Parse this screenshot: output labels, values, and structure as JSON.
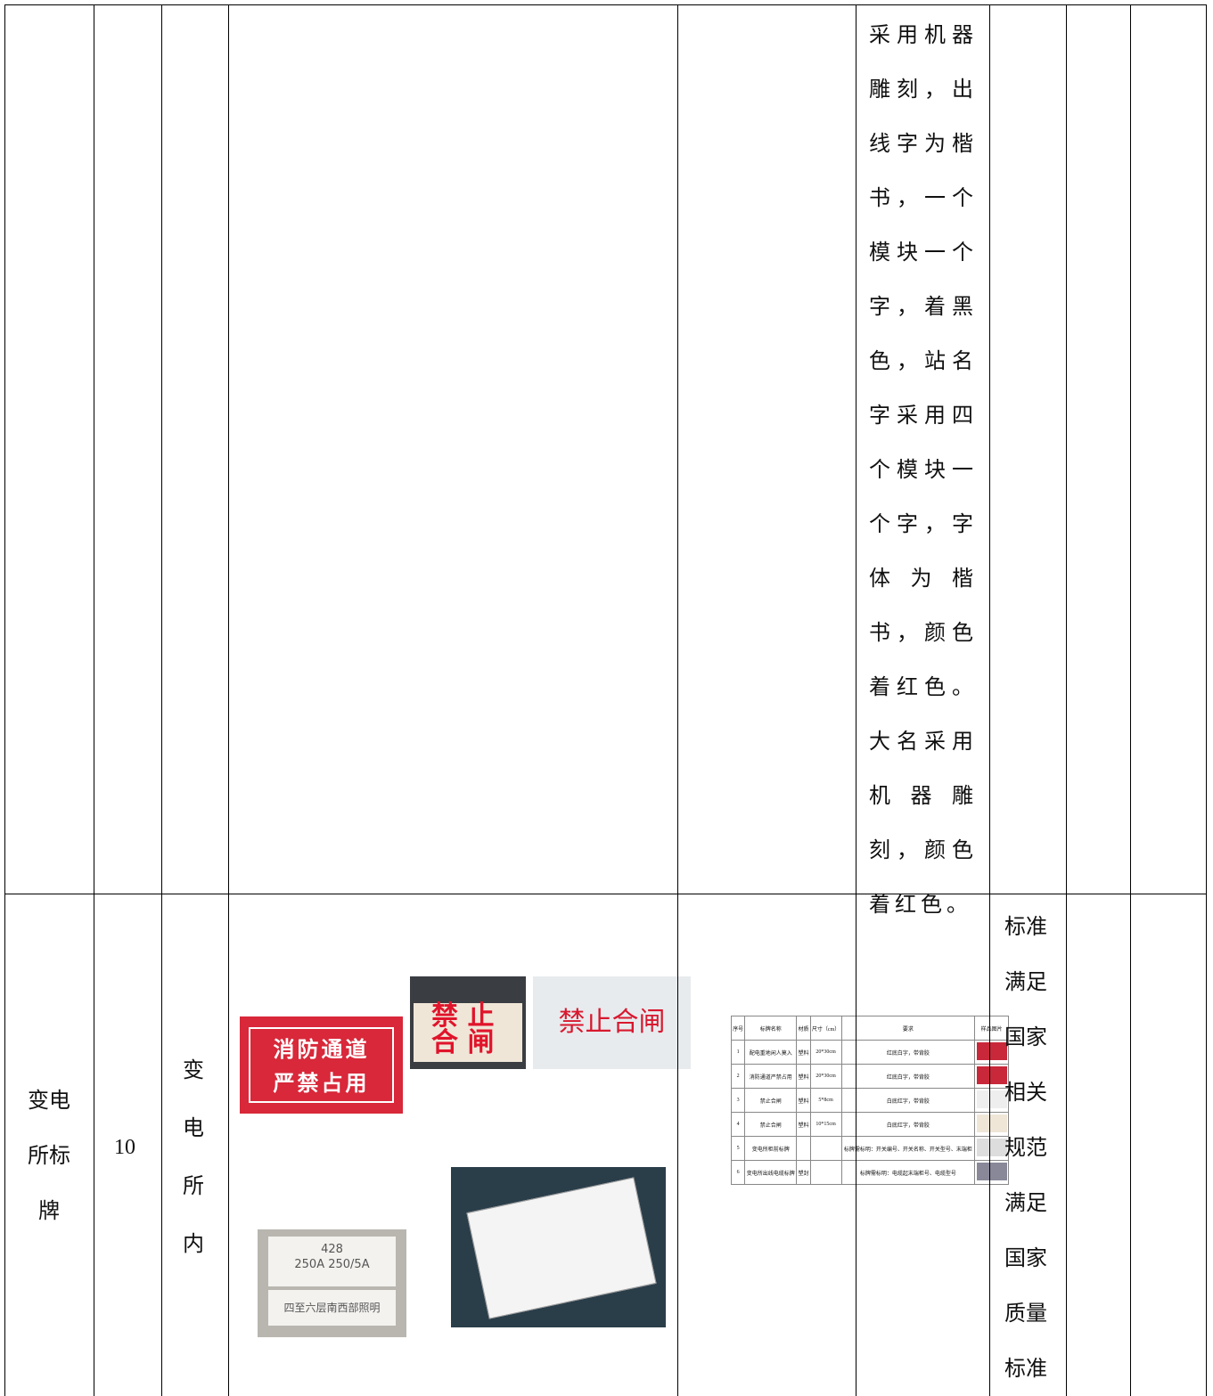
{
  "table": {
    "rows": [
      {
        "requirement": "采用机器雕刻，出线字为楷书，一个模块一个字，着黑色，站名字采用四个模块一个字，字体为楷书，颜色着红色。大名采用机器雕刻，颜色着红色。"
      },
      {
        "name": "变电所标牌",
        "quantity": "10",
        "location": "变电所内",
        "images": [
          {
            "lines": [
              "消防通道",
              "严禁占用"
            ]
          },
          {
            "lines": [
              "禁 止",
              "合 闸"
            ]
          },
          {
            "lines": [
              "禁止合闸"
            ]
          },
          {
            "lines": [
              "428",
              "250A 250/5A",
              "四至六层南西部照明"
            ]
          }
        ],
        "sample_table": {
          "header": [
            "序号",
            "标牌名称",
            "材质",
            "尺寸（cm）",
            "要求",
            "样品图片"
          ],
          "rows": [
            {
              "no": "1",
              "name": "配电重地闲人莫入",
              "material": "塑料",
              "size": "20*30cm",
              "req": "红底白字，带背胶"
            },
            {
              "no": "2",
              "name": "消防通道严禁占用",
              "material": "塑料",
              "size": "20*30cm",
              "req": "红底白字，带背胶"
            },
            {
              "no": "3",
              "name": "禁止合闸",
              "material": "塑料",
              "size": "5*8cm",
              "req": "白底红字，带背胶"
            },
            {
              "no": "4",
              "name": "禁止合闸",
              "material": "塑料",
              "size": "10*15cm",
              "req": "白底红字，带背胶"
            },
            {
              "no": "5",
              "name": "变电所柜前标牌",
              "req": "标牌需标明：开关编号、开关名称、开关型号、末端柜"
            },
            {
              "no": "6",
              "name": "变电所出线电缆标牌",
              "material": "塑封",
              "req": "标牌需标明：电缆起末端柜号、电缆型号"
            }
          ]
        },
        "standard": "标准满足国家相关规范满足国家质量标准"
      }
    ]
  }
}
